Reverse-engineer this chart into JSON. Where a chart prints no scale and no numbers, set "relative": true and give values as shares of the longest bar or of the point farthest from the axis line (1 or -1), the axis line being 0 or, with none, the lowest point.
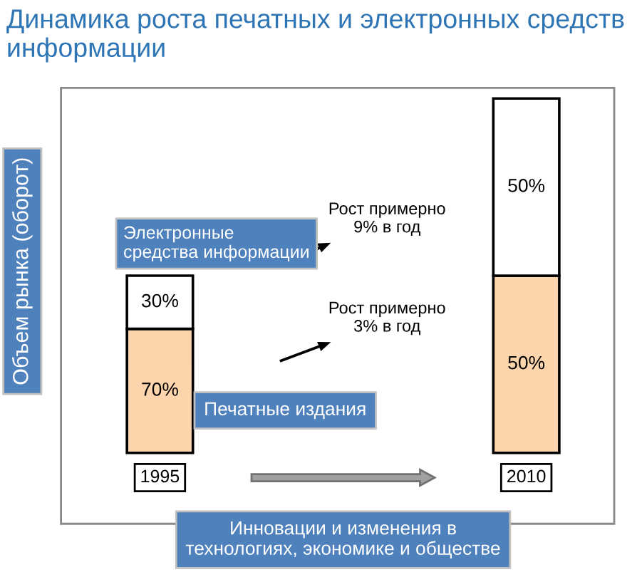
{
  "chart_data": {
    "type": "bar",
    "title": "Динамика роста печатных и электронных средств информации",
    "ylabel": "Объем рынка (оборот)",
    "categories": [
      "1995",
      "2010"
    ],
    "stacked": true,
    "relative": true,
    "legend": false,
    "series": [
      {
        "name": "Печатные издания",
        "color": "#fdd5ac",
        "values": [
          0.35,
          0.5
        ]
      },
      {
        "name": "Электронные средства информации",
        "color": "#ffffff",
        "values": [
          0.15,
          0.5
        ]
      }
    ],
    "annotations": [
      "70%",
      "30%",
      "50%",
      "50%",
      "Рост примерно\n9% в год",
      "Рост примерно\n3% в год",
      "Инновации и изменения в\nтехнологиях, экономике и обществе"
    ]
  }
}
